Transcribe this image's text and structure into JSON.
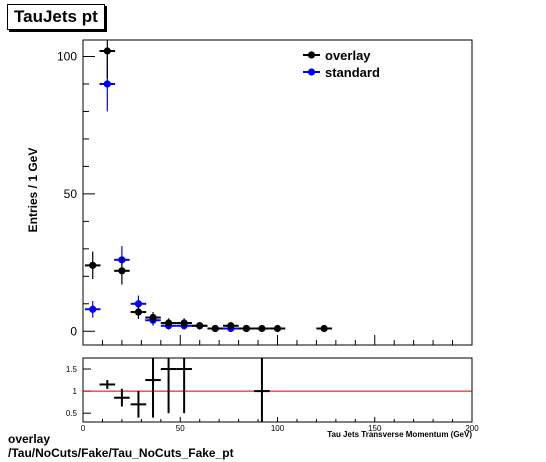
{
  "title": "TauJets pt",
  "footer": {
    "line1": "overlay",
    "line2": "/Tau/NoCuts/Fake/Tau_NoCuts_Fake_pt"
  },
  "colors": {
    "overlay": "#000000",
    "standard": "#0000ff",
    "ratio_line": "#cc0000"
  },
  "chart_data": [
    {
      "type": "scatter",
      "title": "TauJets pt",
      "ylabel": "Entries / 1 GeV",
      "xlabel": "Tau Jets Transverse Momentum (GeV)",
      "xlim": [
        0,
        200
      ],
      "ylim": [
        -5,
        106
      ],
      "yticks": [
        0,
        50,
        100
      ],
      "legend": {
        "position": "top-right",
        "entries": [
          "overlay",
          "standard"
        ]
      },
      "series": [
        {
          "name": "overlay",
          "x": [
            5,
            12.5,
            20,
            28.5,
            36,
            44,
            52,
            60,
            68,
            76,
            84,
            92,
            100,
            124
          ],
          "xerr": [
            4,
            4,
            4,
            4,
            4,
            4,
            4,
            4,
            4,
            4,
            4,
            4,
            4,
            4
          ],
          "y": [
            24,
            102,
            22,
            7,
            5,
            3,
            3,
            2,
            1,
            2,
            1,
            1,
            1,
            1
          ],
          "yerr": [
            5,
            10,
            5,
            2.5,
            2,
            1.7,
            1.7,
            1.3,
            1,
            1.3,
            1,
            1,
            1,
            1
          ]
        },
        {
          "name": "standard",
          "x": [
            5,
            12.5,
            20,
            28.5,
            36,
            44,
            52,
            60,
            68,
            76,
            84
          ],
          "xerr": [
            4,
            4,
            4,
            4,
            4,
            4,
            4,
            4,
            4,
            4,
            4
          ],
          "y": [
            8,
            90,
            26,
            10,
            4,
            2,
            2,
            2,
            1,
            1,
            1
          ],
          "yerr": [
            3,
            10,
            5,
            3,
            2,
            1.4,
            1.4,
            1.4,
            1,
            1,
            1
          ]
        }
      ]
    },
    {
      "type": "scatter",
      "xlabel": "Tau Jets Transverse Momentum (GeV)",
      "xlim": [
        0,
        200
      ],
      "ylim": [
        0.3,
        1.75
      ],
      "xticks": [
        0,
        50,
        100,
        150,
        200
      ],
      "yticks": [
        0.5,
        1,
        1.5
      ],
      "reference_line": 1,
      "series": [
        {
          "name": "ratio",
          "x": [
            12.5,
            20,
            28.5,
            36,
            44,
            52,
            92
          ],
          "xerr": [
            4,
            4,
            4,
            4,
            4,
            4,
            4
          ],
          "y": [
            1.15,
            0.85,
            0.7,
            1.25,
            1.5,
            1.5,
            1.0
          ],
          "yerr": [
            0.1,
            0.2,
            0.3,
            0.85,
            1.0,
            1.0,
            1.0
          ]
        }
      ]
    }
  ]
}
